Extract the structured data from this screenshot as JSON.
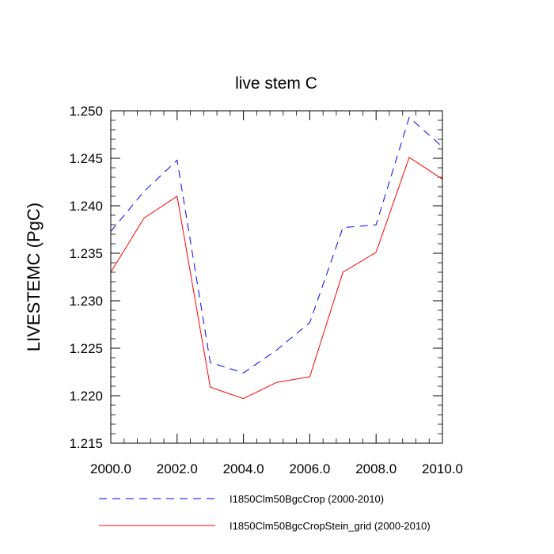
{
  "chart_data": {
    "type": "line",
    "title": "live stem C",
    "xlabel": "",
    "ylabel": "LIVESTEMC  (PgC)",
    "xlim": [
      2000,
      2010
    ],
    "ylim": [
      1.215,
      1.25
    ],
    "x_ticks": [
      {
        "value": 2000,
        "label": "2000.0"
      },
      {
        "value": 2002,
        "label": "2002.0"
      },
      {
        "value": 2004,
        "label": "2004.0"
      },
      {
        "value": 2006,
        "label": "2006.0"
      },
      {
        "value": 2008,
        "label": "2008.0"
      },
      {
        "value": 2010,
        "label": "2010.0"
      }
    ],
    "y_ticks": [
      {
        "value": 1.215,
        "label": "1.215"
      },
      {
        "value": 1.22,
        "label": "1.220"
      },
      {
        "value": 1.225,
        "label": "1.225"
      },
      {
        "value": 1.23,
        "label": "1.230"
      },
      {
        "value": 1.235,
        "label": "1.235"
      },
      {
        "value": 1.24,
        "label": "1.240"
      },
      {
        "value": 1.245,
        "label": "1.245"
      },
      {
        "value": 1.25,
        "label": "1.250"
      }
    ],
    "x": [
      2000,
      2001,
      2002,
      2003,
      2004,
      2005,
      2006,
      2007,
      2008,
      2009,
      2010
    ],
    "series": [
      {
        "name": "I1850Clm50BgcCrop (2000-2010)",
        "color": "#0000ff",
        "dash": "dashed",
        "values": [
          1.2373,
          1.2415,
          1.2448,
          1.2235,
          1.2224,
          1.2248,
          1.2277,
          1.2377,
          1.238,
          1.2493,
          1.2462
        ]
      },
      {
        "name": "I1850Clm50BgcCropStein_grid (2000-2010)",
        "color": "#ff0000",
        "dash": "solid",
        "values": [
          1.233,
          1.2387,
          1.241,
          1.2209,
          1.2197,
          1.2214,
          1.222,
          1.233,
          1.2351,
          1.2451,
          1.2428
        ]
      }
    ],
    "grid": false,
    "legend_placement": "bottom"
  }
}
